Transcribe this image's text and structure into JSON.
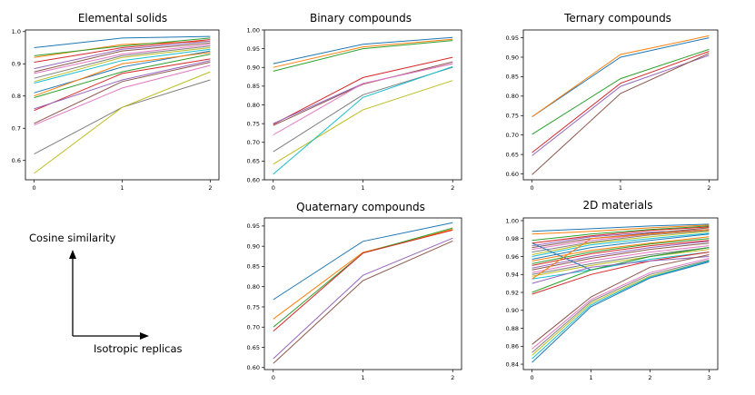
{
  "legend": {
    "ylabel": "Cosine similarity",
    "xlabel": "Isotropic replicas"
  },
  "colors": [
    "#1f77b4",
    "#ff7f0e",
    "#2ca02c",
    "#d62728",
    "#9467bd",
    "#8c564b",
    "#e377c2",
    "#7f7f7f",
    "#bcbd22",
    "#17becf"
  ],
  "chart_data": [
    {
      "type": "line",
      "title": "Elemental solids",
      "xlabel": "",
      "ylabel": "",
      "x": [
        0,
        1,
        2
      ],
      "ylim": [
        0.54,
        1.005
      ],
      "xticks": [
        "0",
        "1",
        "2"
      ],
      "yticks": [
        0.6,
        0.7,
        0.8,
        0.9,
        1.0
      ],
      "ytick_labels": [
        "0.6",
        "0.7",
        "0.8",
        "0.9",
        "1.0"
      ],
      "series": [
        {
          "values": [
            0.95,
            0.98,
            0.985
          ]
        },
        {
          "values": [
            0.92,
            0.96,
            0.97
          ]
        },
        {
          "values": [
            0.925,
            0.955,
            0.98
          ]
        },
        {
          "values": [
            0.905,
            0.95,
            0.975
          ]
        },
        {
          "values": [
            0.885,
            0.945,
            0.97
          ]
        },
        {
          "values": [
            0.875,
            0.94,
            0.965
          ]
        },
        {
          "values": [
            0.87,
            0.93,
            0.96
          ]
        },
        {
          "values": [
            0.855,
            0.925,
            0.955
          ]
        },
        {
          "values": [
            0.845,
            0.92,
            0.95
          ]
        },
        {
          "values": [
            0.84,
            0.91,
            0.945
          ]
        },
        {
          "values": [
            0.81,
            0.89,
            0.94
          ]
        },
        {
          "values": [
            0.8,
            0.9,
            0.935
          ]
        },
        {
          "values": [
            0.795,
            0.875,
            0.93
          ]
        },
        {
          "values": [
            0.755,
            0.87,
            0.915
          ]
        },
        {
          "values": [
            0.76,
            0.85,
            0.91
          ]
        },
        {
          "values": [
            0.715,
            0.845,
            0.905
          ]
        },
        {
          "values": [
            0.71,
            0.825,
            0.895
          ]
        },
        {
          "values": [
            0.62,
            0.765,
            0.85
          ]
        },
        {
          "values": [
            0.56,
            0.765,
            0.875
          ]
        }
      ]
    },
    {
      "type": "line",
      "title": "Binary compounds",
      "xlabel": "",
      "ylabel": "",
      "x": [
        0,
        1,
        2
      ],
      "ylim": [
        0.6,
        1.0
      ],
      "xticks": [
        "0",
        "1",
        "2"
      ],
      "yticks": [
        0.6,
        0.65,
        0.7,
        0.75,
        0.8,
        0.85,
        0.9,
        0.95,
        1.0
      ],
      "ytick_labels": [
        "0.60",
        "0.65",
        "0.70",
        "0.75",
        "0.80",
        "0.85",
        "0.90",
        "0.95",
        "1.00"
      ],
      "series": [
        {
          "values": [
            0.91,
            0.962,
            0.98
          ]
        },
        {
          "values": [
            0.9,
            0.955,
            0.975
          ]
        },
        {
          "values": [
            0.89,
            0.95,
            0.972
          ]
        },
        {
          "values": [
            0.748,
            0.873,
            0.927
          ]
        },
        {
          "values": [
            0.75,
            0.857,
            0.91
          ]
        },
        {
          "values": [
            0.745,
            0.855,
            0.915
          ]
        },
        {
          "values": [
            0.72,
            0.857,
            0.91
          ]
        },
        {
          "values": [
            0.675,
            0.827,
            0.9
          ]
        },
        {
          "values": [
            0.642,
            0.787,
            0.865
          ]
        },
        {
          "values": [
            0.615,
            0.82,
            0.902
          ]
        }
      ]
    },
    {
      "type": "line",
      "title": "Ternary compounds",
      "xlabel": "",
      "ylabel": "",
      "x": [
        0,
        1,
        2
      ],
      "ylim": [
        0.585,
        0.97
      ],
      "xticks": [
        "0",
        "1",
        "2"
      ],
      "yticks": [
        0.6,
        0.65,
        0.7,
        0.75,
        0.8,
        0.85,
        0.9,
        0.95
      ],
      "ytick_labels": [
        "0.60",
        "0.65",
        "0.70",
        "0.75",
        "0.80",
        "0.85",
        "0.90",
        "0.95"
      ],
      "series": [
        {
          "values": [
            0.747,
            0.9,
            0.95
          ]
        },
        {
          "values": [
            0.747,
            0.907,
            0.955
          ]
        },
        {
          "values": [
            0.702,
            0.845,
            0.92
          ]
        },
        {
          "values": [
            0.655,
            0.833,
            0.915
          ]
        },
        {
          "values": [
            0.647,
            0.825,
            0.905
          ]
        },
        {
          "values": [
            0.598,
            0.807,
            0.91
          ]
        }
      ]
    },
    {
      "type": "line",
      "title": "Quaternary compounds",
      "xlabel": "",
      "ylabel": "",
      "x": [
        0,
        1,
        2
      ],
      "ylim": [
        0.595,
        0.97
      ],
      "xticks": [
        "0",
        "1",
        "2"
      ],
      "yticks": [
        0.6,
        0.65,
        0.7,
        0.75,
        0.8,
        0.85,
        0.9,
        0.95
      ],
      "ytick_labels": [
        "0.60",
        "0.65",
        "0.70",
        "0.75",
        "0.80",
        "0.85",
        "0.90",
        "0.95"
      ],
      "series": [
        {
          "values": [
            0.768,
            0.912,
            0.958
          ]
        },
        {
          "values": [
            0.72,
            0.885,
            0.942
          ]
        },
        {
          "values": [
            0.7,
            0.883,
            0.945
          ]
        },
        {
          "values": [
            0.69,
            0.883,
            0.94
          ]
        },
        {
          "values": [
            0.622,
            0.828,
            0.92
          ]
        },
        {
          "values": [
            0.61,
            0.815,
            0.913
          ]
        }
      ]
    },
    {
      "type": "line",
      "title": "2D materials",
      "xlabel": "",
      "ylabel": "",
      "x": [
        0,
        1,
        2,
        3
      ],
      "ylim": [
        0.834,
        1.003
      ],
      "xticks": [
        "0",
        "1",
        "2",
        "3"
      ],
      "yticks": [
        0.84,
        0.86,
        0.88,
        0.9,
        0.92,
        0.94,
        0.96,
        0.98,
        1.0
      ],
      "ytick_labels": [
        "0.84",
        "0.86",
        "0.88",
        "0.90",
        "0.92",
        "0.94",
        "0.96",
        "0.98",
        "1.00"
      ],
      "series": [
        {
          "values": [
            0.988,
            0.991,
            0.994,
            0.996
          ]
        },
        {
          "values": [
            0.985,
            0.988,
            0.992,
            0.995
          ]
        },
        {
          "values": [
            0.978,
            0.985,
            0.99,
            0.994
          ]
        },
        {
          "values": [
            0.975,
            0.983,
            0.989,
            0.993
          ]
        },
        {
          "values": [
            0.972,
            0.982,
            0.987,
            0.99
          ]
        },
        {
          "values": [
            0.97,
            0.98,
            0.986,
            0.992
          ]
        },
        {
          "values": [
            0.968,
            0.978,
            0.985,
            0.99
          ]
        },
        {
          "values": [
            0.965,
            0.976,
            0.984,
            0.989
          ]
        },
        {
          "values": [
            0.962,
            0.975,
            0.982,
            0.988
          ]
        },
        {
          "values": [
            0.96,
            0.973,
            0.98,
            0.986
          ]
        },
        {
          "values": [
            0.957,
            0.97,
            0.978,
            0.985
          ]
        },
        {
          "values": [
            0.955,
            0.967,
            0.975,
            0.982
          ]
        },
        {
          "values": [
            0.952,
            0.965,
            0.974,
            0.98
          ]
        },
        {
          "values": [
            0.95,
            0.963,
            0.972,
            0.978
          ]
        },
        {
          "values": [
            0.947,
            0.96,
            0.97,
            0.977
          ]
        },
        {
          "values": [
            0.945,
            0.958,
            0.968,
            0.975
          ]
        },
        {
          "values": [
            0.942,
            0.955,
            0.965,
            0.972
          ]
        },
        {
          "values": [
            0.94,
            0.952,
            0.962,
            0.97
          ]
        },
        {
          "values": [
            0.938,
            0.95,
            0.96,
            0.968
          ]
        },
        {
          "values": [
            0.935,
            0.945,
            0.957,
            0.965
          ]
        },
        {
          "values": [
            0.975,
            0.945,
            0.96,
            0.97
          ]
        },
        {
          "values": [
            0.935,
            0.98,
            0.985,
            0.99
          ]
        },
        {
          "values": [
            0.92,
            0.945,
            0.96,
            0.97
          ]
        },
        {
          "values": [
            0.918,
            0.94,
            0.955,
            0.965
          ]
        },
        {
          "values": [
            0.93,
            0.948,
            0.955,
            0.96
          ]
        },
        {
          "values": [
            0.862,
            0.915,
            0.948,
            0.962
          ]
        },
        {
          "values": [
            0.857,
            0.912,
            0.942,
            0.958
          ]
        },
        {
          "values": [
            0.853,
            0.91,
            0.94,
            0.956
          ]
        },
        {
          "values": [
            0.85,
            0.908,
            0.938,
            0.955
          ]
        },
        {
          "values": [
            0.846,
            0.906,
            0.937,
            0.955
          ]
        },
        {
          "values": [
            0.842,
            0.904,
            0.936,
            0.954
          ]
        }
      ]
    }
  ]
}
